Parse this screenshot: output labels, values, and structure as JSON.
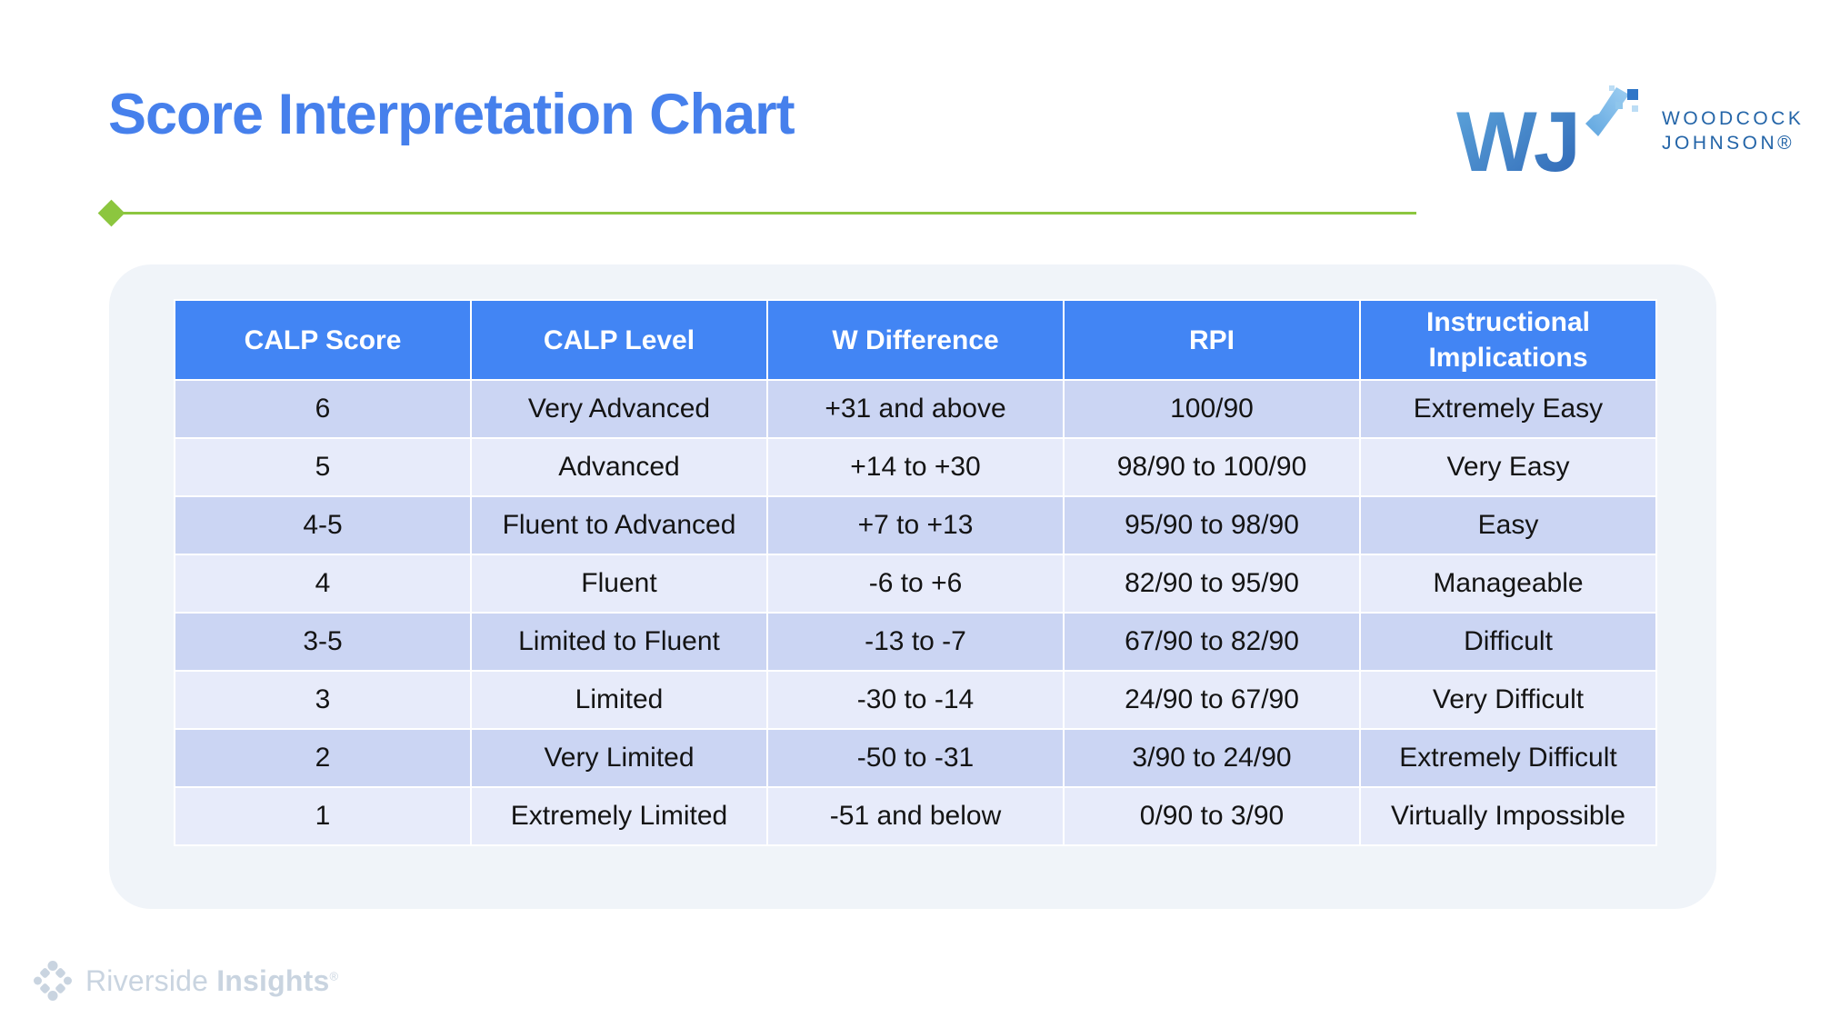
{
  "page": {
    "title": "Score Interpretation Chart"
  },
  "branding": {
    "wj_monogram": "WJ",
    "wj_line1": "WOODCOCK",
    "wj_line2": "JOHNSON®",
    "riverside_word1": "Riverside",
    "riverside_word2": "Insights",
    "riverside_reg": "®"
  },
  "colors": {
    "title_blue": "#4680EC",
    "header_blue": "#4285F4",
    "row_dark": "#CBD5F3",
    "row_light": "#E7EBFA",
    "card_background": "#F0F4F9",
    "accent_green": "#8CC63F",
    "wj_text_blue": "#2465A8",
    "riverside_gray": "#C9D4E0",
    "cell_text": "#141414"
  },
  "chart_data": {
    "type": "table",
    "title": "Score Interpretation Chart",
    "columns": [
      "CALP Score",
      "CALP Level",
      "W Difference",
      "RPI",
      "Instructional Implications"
    ],
    "rows": [
      [
        "6",
        "Very Advanced",
        "+31 and above",
        "100/90",
        "Extremely Easy"
      ],
      [
        "5",
        "Advanced",
        "+14 to +30",
        "98/90 to 100/90",
        "Very Easy"
      ],
      [
        "4-5",
        "Fluent to Advanced",
        "+7 to +13",
        "95/90 to 98/90",
        "Easy"
      ],
      [
        "4",
        "Fluent",
        "-6 to +6",
        "82/90 to 95/90",
        "Manageable"
      ],
      [
        "3-5",
        "Limited to Fluent",
        "-13 to -7",
        "67/90 to 82/90",
        "Difficult"
      ],
      [
        "3",
        "Limited",
        "-30 to -14",
        "24/90 to 67/90",
        "Very Difficult"
      ],
      [
        "2",
        "Very Limited",
        "-50 to -31",
        "3/90 to 24/90",
        "Extremely Difficult"
      ],
      [
        "1",
        "Extremely Limited",
        "-51 and below",
        "0/90 to 3/90",
        "Virtually Impossible"
      ]
    ]
  }
}
